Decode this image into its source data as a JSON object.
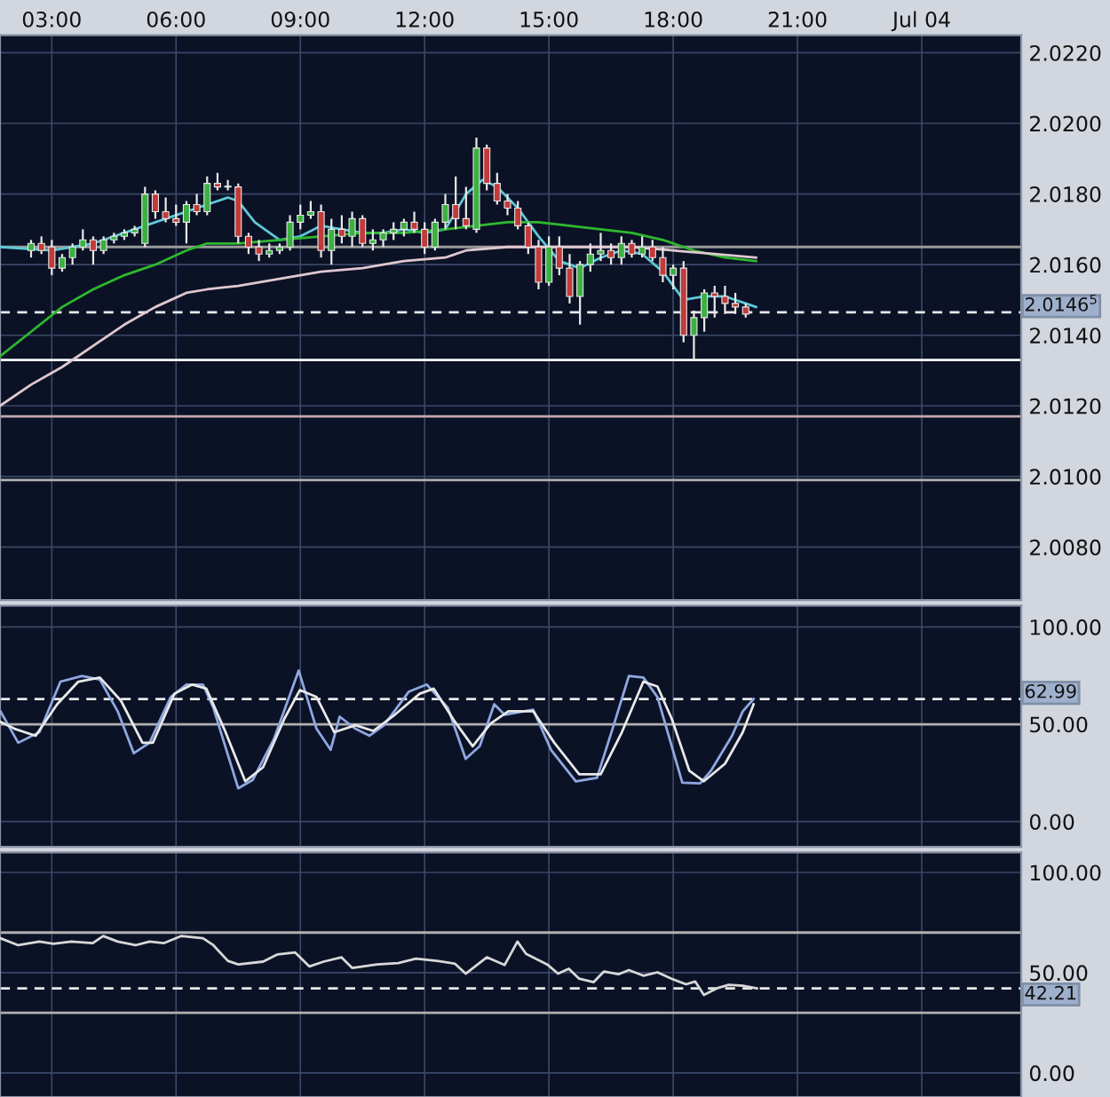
{
  "chart_data": [
    {
      "type": "candlestick",
      "x": [
        2.5,
        2.75,
        3.0,
        3.25,
        3.5,
        3.75,
        4.0,
        4.25,
        4.5,
        4.75,
        5.0,
        5.25,
        5.5,
        5.75,
        6.0,
        6.25,
        6.5,
        6.75,
        7.0,
        7.25,
        7.5,
        7.75,
        8.0,
        8.25,
        8.5,
        8.75,
        9.0,
        9.25,
        9.5,
        9.75,
        10.0,
        10.25,
        10.5,
        10.75,
        11.0,
        11.25,
        11.5,
        11.75,
        12.0,
        12.25,
        12.5,
        12.75,
        13.0,
        13.25,
        13.5,
        13.75,
        14.0,
        14.25,
        14.5,
        14.75,
        15.0,
        15.25,
        15.5,
        15.75,
        16.0,
        16.25,
        16.5,
        16.75,
        17.0,
        17.25,
        17.5,
        17.75,
        18.0,
        18.25,
        18.5,
        18.75,
        19.0,
        19.25,
        19.5,
        19.75
      ],
      "ohlc": [
        [
          2.0164,
          2.0167,
          2.0162,
          2.0166
        ],
        [
          2.0166,
          2.0168,
          2.0163,
          2.0164
        ],
        [
          2.0165,
          2.0167,
          2.0157,
          2.0159
        ],
        [
          2.0159,
          2.0163,
          2.0158,
          2.0162
        ],
        [
          2.0162,
          2.0166,
          2.016,
          2.0165
        ],
        [
          2.0165,
          2.017,
          2.0164,
          2.0167
        ],
        [
          2.0167,
          2.0168,
          2.016,
          2.0164
        ],
        [
          2.0164,
          2.0168,
          2.0163,
          2.0167
        ],
        [
          2.0167,
          2.0169,
          2.0166,
          2.0168
        ],
        [
          2.0168,
          2.017,
          2.0167,
          2.0169
        ],
        [
          2.0169,
          2.0171,
          2.0168,
          2.017
        ],
        [
          2.0166,
          2.0182,
          2.0165,
          2.018
        ],
        [
          2.018,
          2.0181,
          2.0173,
          2.0175
        ],
        [
          2.0175,
          2.0179,
          2.0172,
          2.0173
        ],
        [
          2.0173,
          2.0177,
          2.0171,
          2.0172
        ],
        [
          2.0172,
          2.0178,
          2.0166,
          2.0177
        ],
        [
          2.0177,
          2.018,
          2.0174,
          2.0175
        ],
        [
          2.0175,
          2.0185,
          2.0174,
          2.0183
        ],
        [
          2.0183,
          2.0186,
          2.0181,
          2.0182
        ],
        [
          2.0182,
          2.0184,
          2.0181,
          2.0182
        ],
        [
          2.0182,
          2.0183,
          2.0166,
          2.0168
        ],
        [
          2.0168,
          2.0169,
          2.0163,
          2.0165
        ],
        [
          2.0165,
          2.0167,
          2.0161,
          2.0163
        ],
        [
          2.0163,
          2.0166,
          2.0162,
          2.0164
        ],
        [
          2.0164,
          2.0166,
          2.0163,
          2.0165
        ],
        [
          2.0165,
          2.0174,
          2.0164,
          2.0172
        ],
        [
          2.0172,
          2.0177,
          2.017,
          2.0174
        ],
        [
          2.0174,
          2.0178,
          2.0173,
          2.0175
        ],
        [
          2.0175,
          2.0177,
          2.0162,
          2.0164
        ],
        [
          2.0164,
          2.0173,
          2.016,
          2.017
        ],
        [
          2.017,
          2.0174,
          2.0166,
          2.0168
        ],
        [
          2.0168,
          2.0175,
          2.0165,
          2.0173
        ],
        [
          2.0173,
          2.0174,
          2.0165,
          2.0166
        ],
        [
          2.0166,
          2.017,
          2.0164,
          2.0167
        ],
        [
          2.0167,
          2.017,
          2.0165,
          2.0169
        ],
        [
          2.0169,
          2.0172,
          2.0167,
          2.017
        ],
        [
          2.017,
          2.0173,
          2.0168,
          2.0172
        ],
        [
          2.0172,
          2.0175,
          2.0169,
          2.017
        ],
        [
          2.017,
          2.0172,
          2.0163,
          2.0165
        ],
        [
          2.0165,
          2.0173,
          2.0164,
          2.0172
        ],
        [
          2.0172,
          2.018,
          2.017,
          2.0177
        ],
        [
          2.0177,
          2.0185,
          2.017,
          2.0173
        ],
        [
          2.0173,
          2.0182,
          2.017,
          2.0171
        ],
        [
          2.017,
          2.0196,
          2.0169,
          2.0193
        ],
        [
          2.0193,
          2.0194,
          2.0181,
          2.0183
        ],
        [
          2.0183,
          2.0186,
          2.0177,
          2.0178
        ],
        [
          2.0178,
          2.018,
          2.0174,
          2.0176
        ],
        [
          2.0176,
          2.0178,
          2.017,
          2.0171
        ],
        [
          2.0171,
          2.0172,
          2.0163,
          2.0165
        ],
        [
          2.0165,
          2.0167,
          2.0153,
          2.0155
        ],
        [
          2.0155,
          2.0168,
          2.0154,
          2.0165
        ],
        [
          2.0165,
          2.0168,
          2.0157,
          2.0159
        ],
        [
          2.0159,
          2.0163,
          2.0149,
          2.0151
        ],
        [
          2.0151,
          2.0161,
          2.0143,
          2.016
        ],
        [
          2.016,
          2.0166,
          2.0158,
          2.0163
        ],
        [
          2.0163,
          2.0169,
          2.0161,
          2.0164
        ],
        [
          2.0164,
          2.0166,
          2.016,
          2.0162
        ],
        [
          2.0162,
          2.0168,
          2.016,
          2.0166
        ],
        [
          2.0166,
          2.0167,
          2.0162,
          2.0163
        ],
        [
          2.0163,
          2.0168,
          2.0162,
          2.0165
        ],
        [
          2.0165,
          2.0167,
          2.0161,
          2.0162
        ],
        [
          2.0162,
          2.0165,
          2.0155,
          2.0157
        ],
        [
          2.0157,
          2.016,
          2.0153,
          2.0159
        ],
        [
          2.0159,
          2.0161,
          2.0138,
          2.014
        ],
        [
          2.014,
          2.0147,
          2.0133,
          2.0145
        ],
        [
          2.0145,
          2.0153,
          2.0141,
          2.0152
        ],
        [
          2.0152,
          2.0154,
          2.0145,
          2.0151
        ],
        [
          2.0151,
          2.0154,
          2.0146,
          2.0149
        ],
        [
          2.0149,
          2.0152,
          2.0146,
          2.0148
        ],
        [
          2.0148,
          2.0149,
          2.0145,
          2.0146
        ]
      ],
      "series": [
        {
          "type": "line",
          "color": "#5ec8d8",
          "x": [
            1.75,
            3,
            4,
            5,
            5.75,
            6.5,
            7.25,
            7.5,
            7.9,
            8.5,
            9.0,
            9.5,
            10,
            10.5,
            11,
            11.5,
            12,
            12.5,
            13,
            13.4,
            13.75,
            14.25,
            14.75,
            15.25,
            15.75,
            16.25,
            16.75,
            17.25,
            17.75,
            18.25,
            18.75,
            19.25,
            19.75,
            20.0
          ],
          "values": [
            2.0165,
            2.0164,
            2.0166,
            2.017,
            2.0173,
            2.0176,
            2.0179,
            2.0178,
            2.0172,
            2.0167,
            2.0168,
            2.0171,
            2.017,
            2.0169,
            2.0169,
            2.017,
            2.0169,
            2.017,
            2.018,
            2.0184,
            2.0182,
            2.0176,
            2.0168,
            2.0161,
            2.0159,
            2.0162,
            2.0164,
            2.0163,
            2.0158,
            2.015,
            2.0151,
            2.0151,
            2.0149,
            2.0148
          ]
        },
        {
          "type": "line",
          "color": "#2eb82e",
          "x": [
            1.75,
            2.5,
            3.25,
            4,
            4.75,
            5.5,
            6.25,
            6.75,
            7.5,
            8.5,
            9.5,
            10.5,
            11.5,
            12.5,
            13.25,
            14,
            14.75,
            15.5,
            16.25,
            17,
            17.75,
            18.5,
            19.25,
            20.0
          ],
          "values": [
            2.0134,
            2.0141,
            2.0148,
            2.0153,
            2.0157,
            2.016,
            2.0164,
            2.0166,
            2.0166,
            2.0167,
            2.0168,
            2.0169,
            2.0169,
            2.017,
            2.0171,
            2.0172,
            2.0172,
            2.0171,
            2.017,
            2.0169,
            2.0167,
            2.0164,
            2.0162,
            2.0161
          ]
        },
        {
          "type": "line",
          "color": "#e0c8d0",
          "x": [
            1.75,
            2.5,
            3.25,
            4,
            4.75,
            5.5,
            6.25,
            6.75,
            7.5,
            8.5,
            9.5,
            10.5,
            11.5,
            12.5,
            13,
            14,
            15,
            16,
            17,
            18,
            19,
            20
          ],
          "values": [
            2.012,
            2.0126,
            2.0131,
            2.0137,
            2.0143,
            2.0148,
            2.0152,
            2.0153,
            2.0154,
            2.0156,
            2.0158,
            2.0159,
            2.0161,
            2.0162,
            2.0164,
            2.0165,
            2.0165,
            2.0165,
            2.0165,
            2.0164,
            2.0163,
            2.0162
          ]
        }
      ],
      "xlim": [
        1.75,
        26.4
      ],
      "xticks": [
        {
          "value": 3,
          "label": "03:00"
        },
        {
          "value": 6,
          "label": "06:00"
        },
        {
          "value": 9,
          "label": "09:00"
        },
        {
          "value": 12,
          "label": "12:00"
        },
        {
          "value": 15,
          "label": "15:00"
        },
        {
          "value": 18,
          "label": "18:00"
        },
        {
          "value": 21,
          "label": "21:00"
        },
        {
          "value": 24,
          "label": "Jul 04"
        }
      ],
      "ylim": [
        2.0065,
        2.0225
      ],
      "yticks": [
        {
          "value": 2.008,
          "label": "2.0080"
        },
        {
          "value": 2.01,
          "label": "2.0100"
        },
        {
          "value": 2.012,
          "label": "2.0120"
        },
        {
          "value": 2.014,
          "label": "2.0140"
        },
        {
          "value": 2.016,
          "label": "2.0160"
        },
        {
          "value": 2.018,
          "label": "2.0180"
        },
        {
          "value": 2.02,
          "label": "2.0200"
        },
        {
          "value": 2.022,
          "label": "2.0220"
        }
      ],
      "ref_lines": [
        {
          "axis": "y",
          "value": 2.0165,
          "color": "#9a9a9a"
        },
        {
          "axis": "y",
          "value": 2.01465,
          "label": "2.0146$^{5}$",
          "color": "#e8e8e8",
          "line_style": "dashed"
        },
        {
          "axis": "y",
          "value": 2.0133,
          "color": "#ffffff"
        },
        {
          "axis": "y",
          "value": 2.0117,
          "color": "#c8a8b0"
        },
        {
          "axis": "y",
          "value": 2.0099,
          "color": "#b0b0b0"
        }
      ],
      "grid": true
    },
    {
      "type": "line",
      "series": [
        {
          "color": "#8fa8e0",
          "x": [
            1.76,
            2.19,
            2.7,
            3.21,
            3.73,
            4.16,
            4.59,
            4.98,
            5.36,
            5.87,
            6.25,
            6.65,
            6.9,
            7.5,
            7.85,
            8.36,
            8.96,
            9.39,
            9.73,
            9.95,
            10.33,
            10.67,
            11.02,
            11.62,
            12.05,
            12.56,
            12.99,
            13.33,
            13.68,
            13.93,
            14.62,
            15.05,
            15.65,
            16.16,
            16.59,
            16.93,
            17.28,
            17.62,
            18.22,
            18.65,
            18.91,
            19.42,
            19.68,
            19.94
          ],
          "values": [
            56.7,
            40.5,
            45.9,
            71.9,
            74.8,
            73.0,
            56.7,
            35.1,
            40.5,
            64.0,
            70.4,
            70.4,
            58.5,
            17.1,
            21.4,
            42.3,
            77.6,
            47.7,
            36.9,
            53.9,
            47.7,
            44.1,
            49.5,
            66.8,
            70.4,
            58.5,
            32.2,
            38.7,
            60.3,
            54.9,
            57.5,
            36.9,
            20.7,
            22.5,
            51.3,
            74.8,
            74.0,
            64.0,
            20.0,
            19.6,
            26.1,
            44.1,
            56.7,
            63.0
          ]
        },
        {
          "color": "#e8e8e8",
          "x": [
            1.76,
            2.1,
            2.61,
            3.13,
            3.64,
            4.16,
            4.67,
            5.19,
            5.44,
            5.96,
            6.39,
            6.73,
            7.16,
            7.67,
            8.1,
            8.62,
            8.99,
            9.39,
            9.82,
            10.33,
            10.76,
            11.28,
            11.88,
            12.22,
            12.73,
            13.16,
            13.59,
            14.02,
            14.62,
            15.13,
            15.73,
            16.25,
            16.76,
            17.28,
            17.62,
            17.96,
            18.39,
            18.74,
            19.25,
            19.68,
            19.94
          ],
          "values": [
            51.3,
            47.7,
            44.1,
            60.3,
            71.9,
            74.0,
            62.1,
            40.5,
            40.5,
            65.7,
            70.4,
            68.3,
            47.7,
            20.7,
            27.9,
            53.1,
            67.6,
            64.0,
            45.9,
            49.5,
            46.6,
            54.9,
            65.7,
            68.3,
            51.3,
            38.7,
            50.3,
            56.7,
            56.7,
            40.5,
            24.3,
            24.3,
            45.9,
            71.9,
            69.4,
            53.1,
            26.1,
            20.7,
            29.7,
            45.9,
            60.3
          ]
        }
      ],
      "xlim": [
        1.75,
        26.4
      ],
      "xticks": [
        {
          "value": 3,
          "label": null
        },
        {
          "value": 6,
          "label": null
        },
        {
          "value": 9,
          "label": null
        },
        {
          "value": 12,
          "label": null
        },
        {
          "value": 15,
          "label": null
        },
        {
          "value": 18,
          "label": null
        },
        {
          "value": 21,
          "label": null
        },
        {
          "value": 24,
          "label": null
        }
      ],
      "ylim": [
        -13,
        111
      ],
      "yticks": [
        {
          "value": 0,
          "label": "0.00"
        },
        {
          "value": 50,
          "label": "50.00"
        },
        {
          "value": 100,
          "label": "100.00"
        }
      ],
      "ref_lines": [
        {
          "axis": "y",
          "value": 62.99,
          "label": "62.99",
          "color": "#e8e8e8",
          "line_style": "dashed"
        },
        {
          "axis": "y",
          "value": 50,
          "color": "#b0b0b0"
        }
      ],
      "tick_labels": "y",
      "grid": true
    },
    {
      "type": "line",
      "series": [
        {
          "color": "#d8d8d8",
          "x": [
            1.76,
            2.19,
            2.7,
            3.04,
            3.47,
            3.99,
            4.24,
            4.59,
            5.02,
            5.36,
            5.7,
            6.13,
            6.65,
            6.9,
            7.25,
            7.5,
            8.1,
            8.45,
            8.87,
            9.22,
            9.56,
            9.99,
            10.25,
            10.85,
            11.36,
            11.79,
            12.3,
            12.73,
            12.99,
            13.5,
            13.93,
            14.24,
            14.45,
            14.96,
            15.22,
            15.48,
            15.73,
            16.08,
            16.33,
            16.68,
            16.93,
            17.28,
            17.62,
            17.96,
            18.31,
            18.53,
            18.74,
            19.08,
            19.34,
            19.68,
            20.02
          ],
          "values": [
            67.2,
            63.7,
            65.5,
            64.4,
            65.5,
            64.7,
            68.3,
            65.5,
            63.7,
            65.5,
            64.7,
            68.3,
            67.2,
            63.7,
            55.9,
            54.1,
            55.5,
            59.1,
            60.1,
            53.1,
            55.5,
            57.7,
            52.4,
            54.1,
            54.8,
            57.0,
            55.9,
            54.5,
            49.5,
            57.7,
            53.8,
            65.5,
            59.4,
            54.1,
            49.5,
            52.0,
            47.0,
            45.3,
            50.6,
            49.2,
            51.3,
            48.5,
            50.2,
            47.0,
            44.2,
            45.6,
            38.9,
            42.4,
            43.9,
            43.5,
            42.2
          ]
        }
      ],
      "xlim": [
        1.75,
        26.4
      ],
      "xticks": [
        {
          "value": 3,
          "label": null
        },
        {
          "value": 6,
          "label": null
        },
        {
          "value": 9,
          "label": null
        },
        {
          "value": 12,
          "label": null
        },
        {
          "value": 15,
          "label": null
        },
        {
          "value": 18,
          "label": null
        },
        {
          "value": 21,
          "label": null
        },
        {
          "value": 24,
          "label": null
        }
      ],
      "ylim": [
        -12,
        110
      ],
      "yticks": [
        {
          "value": 0,
          "label": "0.00"
        },
        {
          "value": 50,
          "label": "50.00"
        },
        {
          "value": 100,
          "label": "100.00"
        }
      ],
      "ref_lines": [
        {
          "axis": "y",
          "value": 70,
          "color": "#b0b0b0"
        },
        {
          "axis": "y",
          "value": 42.21,
          "label": "42.21",
          "color": "#e8e8e8",
          "line_style": "dashed"
        },
        {
          "axis": "y",
          "value": 30,
          "color": "#b0b0b0"
        }
      ],
      "tick_labels": "y",
      "grid": true
    }
  ]
}
